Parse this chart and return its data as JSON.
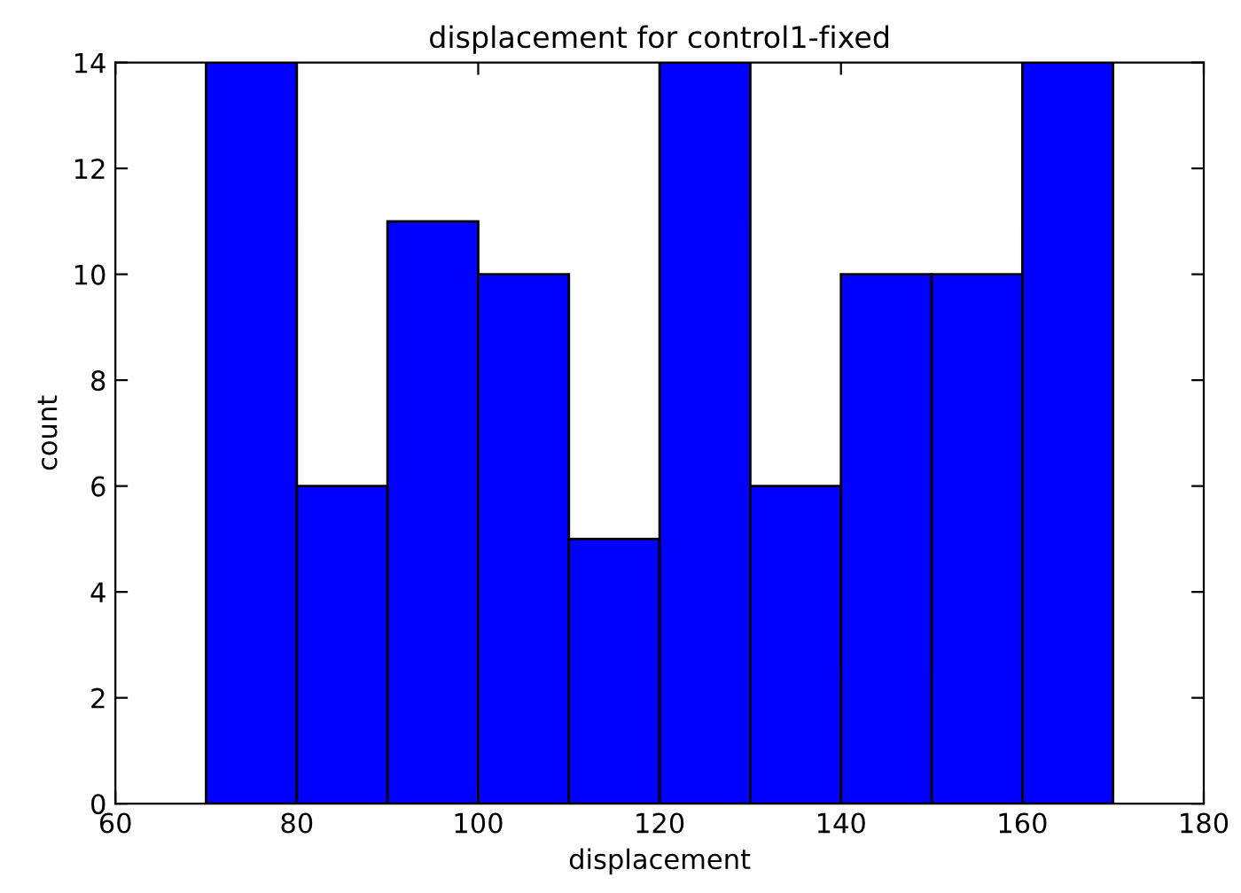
{
  "chart_data": {
    "type": "histogram",
    "title": "displacement for control1-fixed",
    "xlabel": "displacement",
    "ylabel": "count",
    "bins": [
      70,
      80,
      90,
      100,
      110,
      120,
      130,
      140,
      150,
      160,
      170
    ],
    "values": [
      14,
      6,
      11,
      10,
      5,
      14,
      6,
      10,
      10,
      14
    ],
    "color": "#0000ff",
    "xlim": [
      60,
      180
    ],
    "xticks": [
      60,
      80,
      100,
      120,
      140,
      160,
      180
    ],
    "ylim": [
      0,
      14
    ],
    "yticks": [
      0,
      2,
      4,
      6,
      8,
      10,
      12,
      14
    ],
    "grid": false
  }
}
